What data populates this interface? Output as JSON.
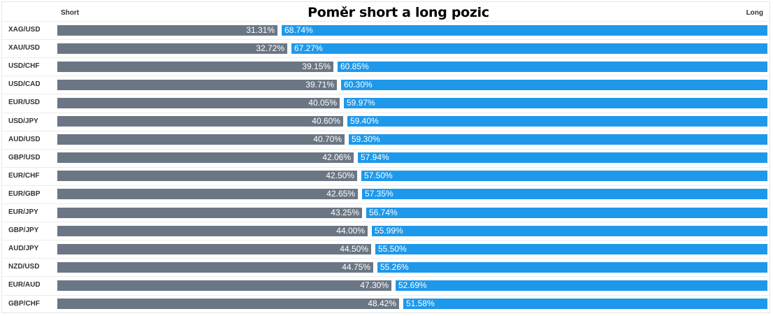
{
  "chart_data": {
    "type": "bar",
    "orientation": "horizontal",
    "stacked": true,
    "normalized_percent": true,
    "title": "Poměr short a long pozic",
    "short_header": "Short",
    "long_header": "Long",
    "categories": [
      "XAG/USD",
      "XAU/USD",
      "USD/CHF",
      "USD/CAD",
      "EUR/USD",
      "USD/JPY",
      "AUD/USD",
      "GBP/USD",
      "EUR/CHF",
      "EUR/GBP",
      "EUR/JPY",
      "GBP/JPY",
      "AUD/JPY",
      "NZD/USD",
      "EUR/AUD",
      "GBP/CHF"
    ],
    "series": [
      {
        "name": "Short",
        "color": "#6b7684",
        "values": [
          31.31,
          32.72,
          39.15,
          39.71,
          40.05,
          40.6,
          40.7,
          42.06,
          42.5,
          42.65,
          43.25,
          44.0,
          44.5,
          44.75,
          47.3,
          48.42
        ],
        "labels": [
          "31.31%",
          "32.72%",
          "39.15%",
          "39.71%",
          "40.05%",
          "40.60%",
          "40.70%",
          "42.06%",
          "42.50%",
          "42.65%",
          "43.25%",
          "44.00%",
          "44.50%",
          "44.75%",
          "47.30%",
          "48.42%"
        ]
      },
      {
        "name": "Long",
        "color": "#1e98ea",
        "values": [
          68.74,
          67.27,
          60.85,
          60.3,
          59.97,
          59.4,
          59.3,
          57.94,
          57.5,
          57.35,
          56.74,
          55.99,
          55.5,
          55.26,
          52.69,
          51.58
        ],
        "labels": [
          "68.74%",
          "67.27%",
          "60.85%",
          "60.30%",
          "59.97%",
          "59.40%",
          "59.30%",
          "57.94%",
          "57.50%",
          "57.35%",
          "56.74%",
          "55.99%",
          "55.50%",
          "55.26%",
          "52.69%",
          "51.58%"
        ]
      }
    ],
    "xlim": [
      0,
      100
    ],
    "grid": false,
    "legend": "none"
  }
}
